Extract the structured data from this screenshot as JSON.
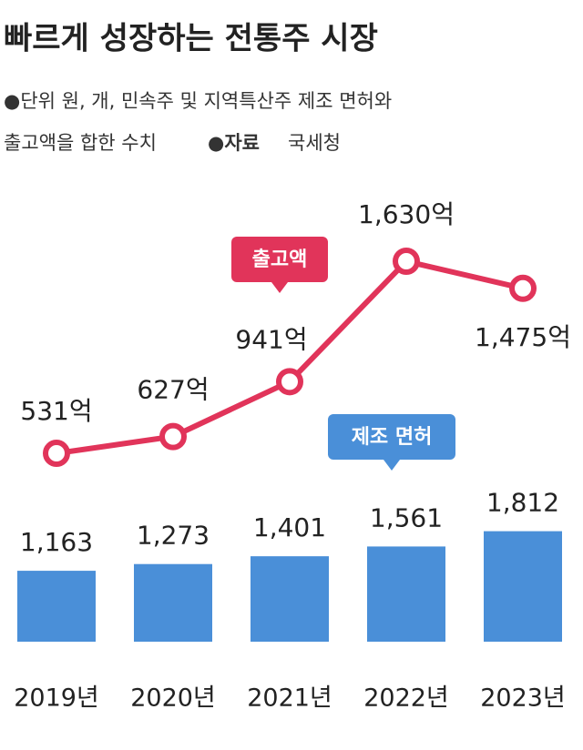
{
  "chart_data": {
    "type": "bar-line",
    "title": "빠르게 성장하는 전통주 시장",
    "note_line1": "●단위  원, 개, 민속주 및 지역특산주 제조 면허와",
    "note_line2": "출고액을 합한 수치",
    "source_label": "●자료",
    "source": "국세청",
    "categories": [
      "2019년",
      "2020년",
      "2021년",
      "2022년",
      "2023년"
    ],
    "series": [
      {
        "name": "제조 면허",
        "type": "bar",
        "color": "#4a8fd8",
        "values": [
          1163,
          1273,
          1401,
          1561,
          1812
        ],
        "value_labels": [
          "1,163",
          "1,273",
          "1,401",
          "1,561",
          "1,812"
        ]
      },
      {
        "name": "출고액",
        "type": "line",
        "color": "#e1345a",
        "values": [
          531,
          627,
          941,
          1630,
          1475
        ],
        "value_labels": [
          "531억",
          "627억",
          "941억",
          "1,630억",
          "1,475억"
        ]
      }
    ]
  }
}
